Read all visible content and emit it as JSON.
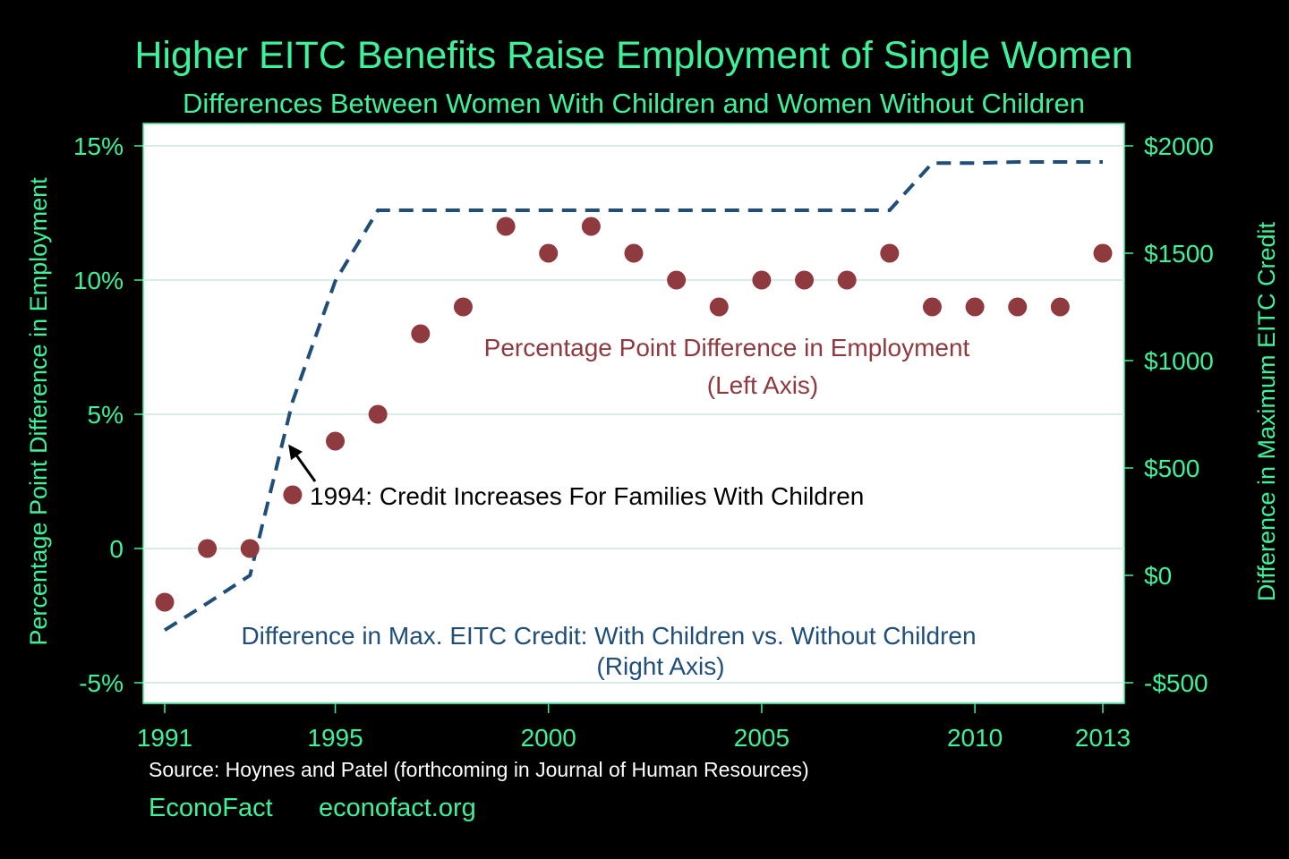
{
  "colors": {
    "background": "#000000",
    "plot_background": "#ffffff",
    "accent_green": "#3df29a",
    "dots": "#8e3a3e",
    "line": "#1f4e79",
    "annotation": "#000000",
    "grid": "#d9ece8"
  },
  "chart_data": {
    "type": "scatter",
    "title": "Higher EITC Benefits Raise Employment of Single Women",
    "subtitle": "Differences Between Women With Children and Women Without Children",
    "ylabel_left": "Percentage Point Difference in Employment",
    "ylabel_right": "Difference in Maximum EITC Credit",
    "xlim": [
      1991,
      2013
    ],
    "ylim_left": [
      -5,
      15
    ],
    "ylim_right": [
      -500,
      2000
    ],
    "x_ticks": [
      {
        "value": 1991,
        "label": "1991"
      },
      {
        "value": 1995,
        "label": "1995"
      },
      {
        "value": 2000,
        "label": "2000"
      },
      {
        "value": 2005,
        "label": "2005"
      },
      {
        "value": 2010,
        "label": "2010"
      },
      {
        "value": 2013,
        "label": "2013"
      }
    ],
    "y_ticks_left": [
      {
        "value": 15,
        "label": "15%"
      },
      {
        "value": 10,
        "label": "10%"
      },
      {
        "value": 5,
        "label": "5%"
      },
      {
        "value": 0,
        "label": "0"
      },
      {
        "value": -5,
        "label": "-5%"
      }
    ],
    "y_ticks_right": [
      {
        "value": 2000,
        "label": "$2000"
      },
      {
        "value": 1500,
        "label": "$1500"
      },
      {
        "value": 1000,
        "label": "$1000"
      },
      {
        "value": 500,
        "label": "$500"
      },
      {
        "value": 0,
        "label": "$0"
      },
      {
        "value": -500,
        "label": "-$500"
      }
    ],
    "grid": true,
    "series": [
      {
        "name": "Percentage Point Difference in Employment",
        "axis": "left",
        "style": "markers",
        "x": [
          1991,
          1992,
          1993,
          1994,
          1995,
          1996,
          1997,
          1998,
          1999,
          2000,
          2001,
          2002,
          2003,
          2004,
          2005,
          2006,
          2007,
          2008,
          2009,
          2010,
          2011,
          2012,
          2013
        ],
        "y": [
          -2,
          0,
          0,
          2,
          4,
          5,
          8,
          9,
          12,
          11,
          12,
          11,
          10,
          9,
          10,
          10,
          10,
          11,
          9,
          9,
          9,
          9,
          11
        ]
      },
      {
        "name": "Difference in Max. EITC Credit: With Children vs. Without Children",
        "axis": "right",
        "style": "dashed-line",
        "x": [
          1991,
          1992,
          1993,
          1994,
          1995,
          1996,
          1997,
          1998,
          1999,
          2000,
          2001,
          2002,
          2003,
          2004,
          2005,
          2006,
          2007,
          2008,
          2009,
          2010,
          2011,
          2012,
          2013
        ],
        "y": [
          -255,
          -130,
          0,
          810,
          1370,
          1700,
          1700,
          1700,
          1700,
          1700,
          1700,
          1700,
          1700,
          1700,
          1700,
          1700,
          1700,
          1700,
          1920,
          1920,
          1925,
          1925,
          1925
        ]
      }
    ],
    "annotations": [
      {
        "text": "Percentage Point Difference in Employment",
        "color": "dots"
      },
      {
        "text": "(Left Axis)",
        "color": "dots"
      },
      {
        "text": "Difference in Max. EITC Credit: With Children vs. Without Children",
        "color": "line"
      },
      {
        "text": "(Right Axis)",
        "color": "line"
      },
      {
        "text": "1994: Credit Increases For Families With Children",
        "color": "annotation",
        "arrow_to": {
          "x": 1993.9,
          "y_right": 610
        }
      }
    ]
  },
  "footer": {
    "source": "Source: Hoynes and Patel (forthcoming in Journal of Human Resources)",
    "brand": "EconoFact",
    "url": "econofact.org"
  }
}
